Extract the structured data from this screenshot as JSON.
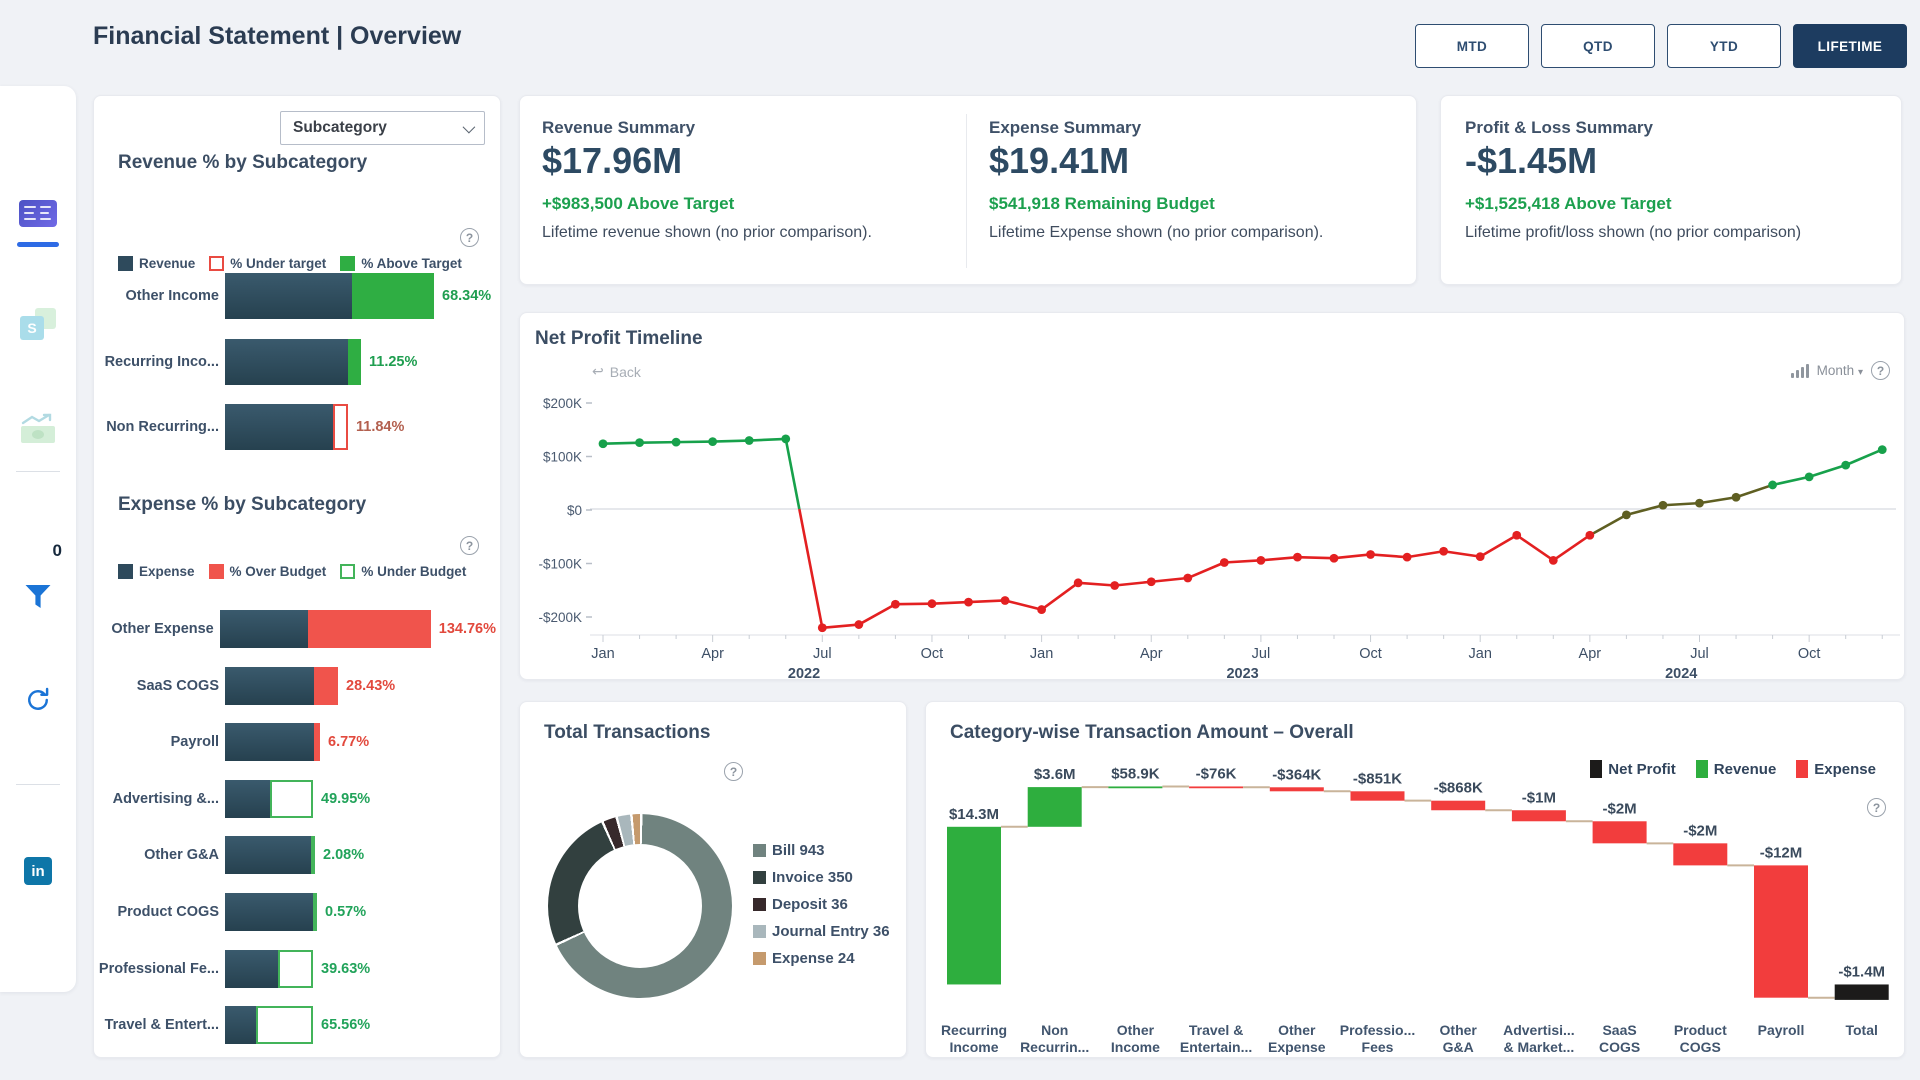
{
  "header": {
    "title": "Financial Statement | Overview",
    "period_buttons": [
      {
        "label": "MTD",
        "active": false
      },
      {
        "label": "QTD",
        "active": false
      },
      {
        "label": "YTD",
        "active": false
      },
      {
        "label": "LIFETIME",
        "active": true
      }
    ]
  },
  "sidebar": {
    "badge": "0",
    "icons": [
      "dashboard-icon",
      "spreadsheet-icon",
      "cashflow-icon",
      "filter-funnel-icon",
      "refresh-icon",
      "linkedin-icon"
    ]
  },
  "filters": {
    "dropdown_value": "Subcategory"
  },
  "summary_cards": {
    "revenue": {
      "title": "Revenue Summary",
      "value": "$17.96M",
      "highlight": "+$983,500 Above Target",
      "note": "Lifetime revenue shown (no prior comparison)."
    },
    "expense": {
      "title": "Expense Summary",
      "value": "$19.41M",
      "highlight": "$541,918 Remaining Budget",
      "note": "Lifetime Expense shown (no prior comparison)."
    },
    "profit_loss": {
      "title": "Profit & Loss Summary",
      "value": "-$1.45M",
      "highlight": "+$1,525,418 Above Target",
      "note": "Lifetime profit/loss shown (no prior comparison)"
    }
  },
  "timeline_controls": {
    "back_label": "Back",
    "granularity": "Month"
  },
  "chart_data": [
    {
      "name": "revenue_pct_by_subcategory",
      "type": "bar",
      "orientation": "horizontal",
      "title": "Revenue % by Subcategory",
      "legend": [
        {
          "label": "Revenue",
          "type": "fill",
          "color": "#2e4a5c"
        },
        {
          "label": "% Under target",
          "type": "outline",
          "color": "#e94b42"
        },
        {
          "label": "% Above Target",
          "type": "fill",
          "color": "#2fae43"
        }
      ],
      "colors": {
        "above_text": "#1f9e50",
        "under_text": "#b3604f",
        "above_fill": "#2fae43",
        "under_outline": "#e94b42"
      },
      "rows": [
        {
          "category": "Other Income",
          "pct_label": "68.34%",
          "pct": 68.34,
          "status": "above",
          "base_w": 127,
          "delta_w": 82
        },
        {
          "category": "Recurring Inco...",
          "pct_label": "11.25%",
          "pct": 11.25,
          "status": "above",
          "base_w": 123,
          "delta_w": 13
        },
        {
          "category": "Non Recurring...",
          "pct_label": "11.84%",
          "pct": 11.84,
          "status": "under",
          "base_w": 108,
          "delta_w": 15
        }
      ]
    },
    {
      "name": "expense_pct_by_subcategory",
      "type": "bar",
      "orientation": "horizontal",
      "title": "Expense % by Subcategory",
      "legend": [
        {
          "label": "Expense",
          "type": "fill",
          "color": "#2e4a5c"
        },
        {
          "label": "% Over Budget",
          "type": "fill",
          "color": "#f0544c"
        },
        {
          "label": "% Under Budget",
          "type": "outline",
          "color": "#43b45a"
        }
      ],
      "colors": {
        "over_text": "#e2493d",
        "under_text": "#21a35a",
        "over_fill": "#f0544c",
        "under_outline": "#43b45a"
      },
      "rows": [
        {
          "category": "Other Expense",
          "pct_label": "134.76%",
          "pct": 134.76,
          "status": "over",
          "base_w": 88,
          "delta_w": 123
        },
        {
          "category": "SaaS COGS",
          "pct_label": "28.43%",
          "pct": 28.43,
          "status": "over",
          "base_w": 89,
          "delta_w": 24
        },
        {
          "category": "Payroll",
          "pct_label": "6.77%",
          "pct": 6.77,
          "status": "over",
          "base_w": 89,
          "delta_w": 6
        },
        {
          "category": "Advertising &...",
          "pct_label": "49.95%",
          "pct": 49.95,
          "status": "under",
          "base_w": 45,
          "delta_w": 43
        },
        {
          "category": "Other G&A",
          "pct_label": "2.08%",
          "pct": 2.08,
          "status": "under",
          "base_w": 86,
          "delta_w": 4
        },
        {
          "category": "Product COGS",
          "pct_label": "0.57%",
          "pct": 0.57,
          "status": "under",
          "base_w": 88,
          "delta_w": 2
        },
        {
          "category": "Professional Fe...",
          "pct_label": "39.63%",
          "pct": 39.63,
          "status": "under",
          "base_w": 53,
          "delta_w": 35
        },
        {
          "category": "Travel & Entert...",
          "pct_label": "65.56%",
          "pct": 65.56,
          "status": "under",
          "base_w": 31,
          "delta_w": 57
        }
      ]
    },
    {
      "name": "net_profit_timeline",
      "type": "line",
      "title": "Net Profit Timeline",
      "unit": "$K",
      "y_ticks": [
        "$200K",
        "$100K",
        "$0",
        "-$100K",
        "-$200K"
      ],
      "x_tick_months": [
        "Jan",
        "Apr",
        "Jul",
        "Oct"
      ],
      "years": [
        "2022",
        "2023",
        "2024"
      ],
      "colors": {
        "positive": "#17a14b",
        "negative": "#e32021",
        "neutral": "#5f5f22"
      },
      "values_k": [
        122,
        124,
        125,
        126,
        128,
        131,
        -222,
        -216,
        -178,
        -177,
        -174,
        -171,
        -188,
        -138,
        -143,
        -136,
        -129,
        -100,
        -96,
        -90,
        -92,
        -85,
        -90,
        -79,
        -89,
        -49,
        -96,
        -49,
        -11,
        7,
        11,
        22,
        45,
        60,
        82,
        111
      ]
    },
    {
      "name": "total_transactions",
      "type": "donut",
      "title": "Total Transactions",
      "slices": [
        {
          "label": "Bill",
          "value": 943,
          "color": "#70837f"
        },
        {
          "label": "Invoice",
          "value": 350,
          "color": "#32403f"
        },
        {
          "label": "Deposit",
          "value": 36,
          "color": "#37292b"
        },
        {
          "label": "Journal Entry",
          "value": 36,
          "color": "#a9b7bc"
        },
        {
          "label": "Expense",
          "value": 24,
          "color": "#c59a6d"
        }
      ]
    },
    {
      "name": "category_waterfall",
      "type": "waterfall",
      "title": "Category-wise Transaction Amount – Overall",
      "legend": [
        {
          "label": "Net Profit",
          "type": "fill",
          "color": "#1c1b1a"
        },
        {
          "label": "Revenue",
          "type": "fill",
          "color": "#2eae3e"
        },
        {
          "label": "Expense",
          "type": "fill",
          "color": "#f23d3d"
        }
      ],
      "colors": {
        "revenue": "#2eae3e",
        "expense": "#f23d3d",
        "total": "#1c1b1a",
        "connector": "#c9b49a"
      },
      "axis": {
        "vmax_m": 18.0,
        "vmin_m": -1.5
      },
      "bars": [
        {
          "label_lines": [
            "Recurring",
            "Income"
          ],
          "value_label": "$14.3M",
          "value_m": 14.3,
          "kind": "revenue"
        },
        {
          "label_lines": [
            "Non",
            "Recurrin..."
          ],
          "value_label": "$3.6M",
          "value_m": 3.6,
          "kind": "revenue"
        },
        {
          "label_lines": [
            "Other",
            "Income"
          ],
          "value_label": "$58.9K",
          "value_m": 0.0589,
          "kind": "revenue"
        },
        {
          "label_lines": [
            "Travel &",
            "Entertain..."
          ],
          "value_label": "-$76K",
          "value_m": -0.076,
          "kind": "expense"
        },
        {
          "label_lines": [
            "Other",
            "Expense"
          ],
          "value_label": "-$364K",
          "value_m": -0.364,
          "kind": "expense"
        },
        {
          "label_lines": [
            "Professio...",
            "Fees"
          ],
          "value_label": "-$851K",
          "value_m": -0.851,
          "kind": "expense"
        },
        {
          "label_lines": [
            "Other",
            "G&A"
          ],
          "value_label": "-$868K",
          "value_m": -0.868,
          "kind": "expense"
        },
        {
          "label_lines": [
            "Advertisi...",
            "& Market..."
          ],
          "value_label": "-$1M",
          "value_m": -1.0,
          "kind": "expense"
        },
        {
          "label_lines": [
            "SaaS",
            "COGS"
          ],
          "value_label": "-$2M",
          "value_m": -2.0,
          "kind": "expense"
        },
        {
          "label_lines": [
            "Product",
            "COGS"
          ],
          "value_label": "-$2M",
          "value_m": -2.0,
          "kind": "expense"
        },
        {
          "label_lines": [
            "Payroll"
          ],
          "value_label": "-$12M",
          "value_m": -12.0,
          "kind": "expense"
        },
        {
          "label_lines": [
            "Total"
          ],
          "value_label": "-$1.4M",
          "value_m": -1.4,
          "kind": "total"
        }
      ]
    }
  ]
}
